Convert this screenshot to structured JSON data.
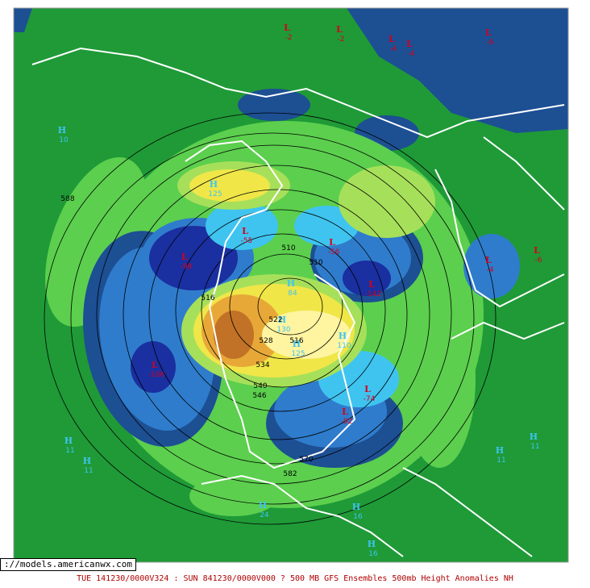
{
  "map": {
    "url": "://models.americanwx.com",
    "caption": "TUE 141230/0000V324 : SUN 841230/0000V000  ? 500 MB GFS Ensembles 500mb Height Anomalies NH",
    "pressure_centers": [
      {
        "type": "L",
        "value": "-2"
      },
      {
        "type": "L",
        "value": "-2"
      },
      {
        "type": "L",
        "value": "-4"
      },
      {
        "type": "L",
        "value": "-4"
      },
      {
        "type": "L",
        "value": "-6"
      },
      {
        "type": "L",
        "value": "-55"
      },
      {
        "type": "L",
        "value": "-56"
      },
      {
        "type": "L",
        "value": "-98"
      },
      {
        "type": "L",
        "value": "-106"
      },
      {
        "type": "L",
        "value": "-74"
      },
      {
        "type": "L",
        "value": "-92"
      },
      {
        "type": "L",
        "value": "-142"
      },
      {
        "type": "L",
        "value": "-4"
      },
      {
        "type": "L",
        "value": "-6"
      },
      {
        "type": "H",
        "value": "10"
      },
      {
        "type": "H",
        "value": "125"
      },
      {
        "type": "H",
        "value": "84"
      },
      {
        "type": "H",
        "value": "130"
      },
      {
        "type": "H",
        "value": "125"
      },
      {
        "type": "H",
        "value": "110"
      },
      {
        "type": "H",
        "value": "11"
      },
      {
        "type": "H",
        "value": "11"
      },
      {
        "type": "H",
        "value": "11"
      },
      {
        "type": "H",
        "value": "11"
      },
      {
        "type": "H",
        "value": "24"
      },
      {
        "type": "H",
        "value": "16"
      },
      {
        "type": "H",
        "value": "16"
      }
    ],
    "contour_labels": [
      "588",
      "510",
      "510",
      "516",
      "522",
      "528",
      "516",
      "534",
      "540",
      "546",
      "582",
      "570"
    ]
  }
}
